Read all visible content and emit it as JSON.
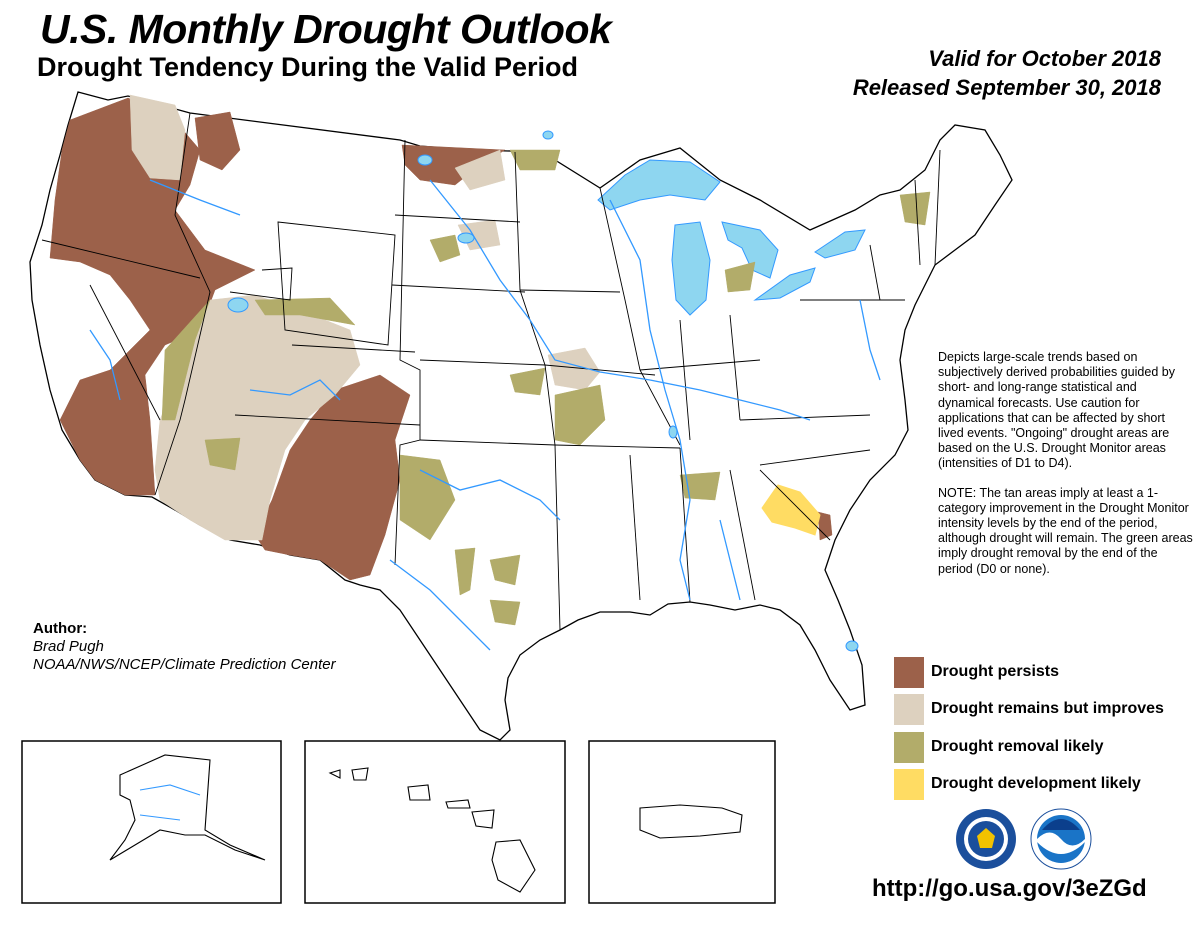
{
  "header": {
    "title": "U.S. Monthly Drought Outlook",
    "subtitle": "Drought Tendency During the Valid Period",
    "valid_line": "Valid for October 2018",
    "released_line": "Released September 30, 2018"
  },
  "description": {
    "paragraph1": "Depicts large-scale trends based on subjectively derived probabilities guided by short- and long-range statistical and dynamical forecasts. Use caution for applications that can be affected by short lived events. \"Ongoing\" drought areas are based on the U.S. Drought Monitor areas (intensities of D1 to D4).",
    "paragraph2": "NOTE: The tan areas imply at least a 1-category improvement in the Drought Monitor intensity levels by the end of the period, although drought will remain. The green areas imply drought removal by the end of the period (D0 or none)."
  },
  "author": {
    "label": "Author:",
    "name": "Brad Pugh",
    "org": "NOAA/NWS/NCEP/Climate Prediction Center"
  },
  "legend": {
    "items": [
      {
        "label": "Drought persists",
        "color": "#9c614a"
      },
      {
        "label": "Drought remains but improves",
        "color": "#ddd1bf"
      },
      {
        "label": "Drought removal likely",
        "color": "#b2ac6a"
      },
      {
        "label": "Drought development likely",
        "color": "#ffdc63"
      }
    ]
  },
  "colors": {
    "water": "#8ed6f0",
    "rivers": "#3399ff",
    "boundaries": "#000000"
  },
  "icons": {
    "doc_seal": "department-of-commerce-seal-icon",
    "noaa_logo": "noaa-logo-icon"
  },
  "url": "http://go.usa.gov/3eZGd"
}
